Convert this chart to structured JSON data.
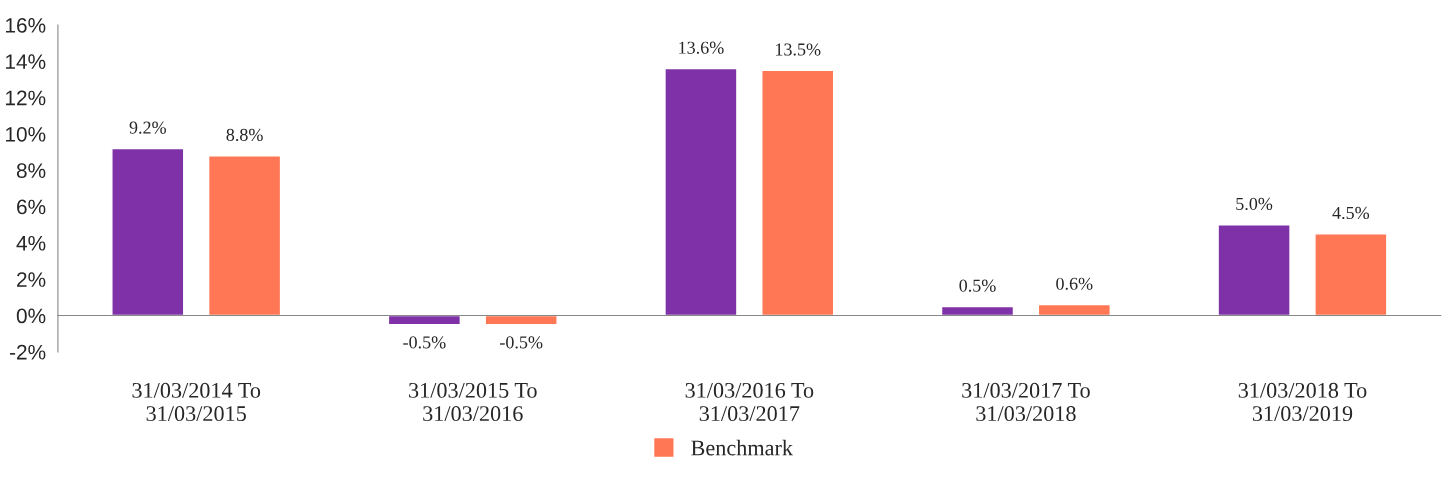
{
  "chart_data": {
    "type": "bar",
    "categories": [
      "31/03/2014 To\n31/03/2015",
      "31/03/2015 To\n31/03/2016",
      "31/03/2016 To\n31/03/2017",
      "31/03/2017 To\n31/03/2018",
      "31/03/2018 To\n31/03/2019"
    ],
    "series": [
      {
        "color": "#7f31a7",
        "values": [
          9.2,
          -0.5,
          13.6,
          0.5,
          5.0
        ],
        "value_labels": [
          "9.2%",
          "-0.5%",
          "13.6%",
          "0.5%",
          "5.0%"
        ]
      },
      {
        "name": "Benchmark",
        "color": "#ff7755",
        "values": [
          8.8,
          -0.5,
          13.5,
          0.6,
          4.5
        ],
        "value_labels": [
          "8.8%",
          "-0.5%",
          "13.5%",
          "0.6%",
          "4.5%"
        ]
      }
    ],
    "ylim": [
      -2,
      16
    ],
    "yticks": [
      {
        "value": -2,
        "label": "-2%"
      },
      {
        "value": 0,
        "label": "0%"
      },
      {
        "value": 2,
        "label": "2%"
      },
      {
        "value": 4,
        "label": "4%"
      },
      {
        "value": 6,
        "label": "6%"
      },
      {
        "value": 8,
        "label": "8%"
      },
      {
        "value": 10,
        "label": "10%"
      },
      {
        "value": 12,
        "label": "12%"
      },
      {
        "value": 14,
        "label": "14%"
      },
      {
        "value": 16,
        "label": "16%"
      }
    ],
    "legend": "bottom"
  }
}
